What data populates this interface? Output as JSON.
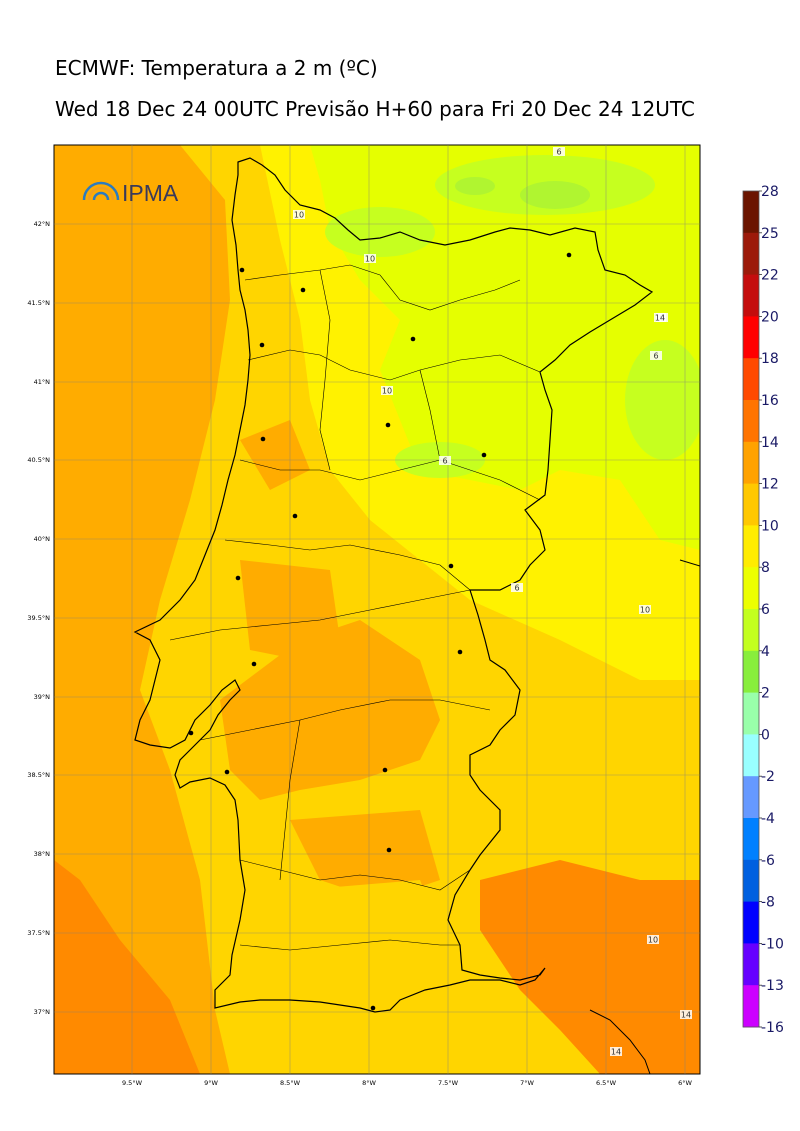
{
  "title": {
    "line1": "ECMWF: Temperatura a 2 m (ºC)",
    "line2": "Wed 18 Dec 24 00UTC Previsão H+60 para Fri 20 Dec 24 12UTC"
  },
  "logo": {
    "text": "IPMA"
  },
  "axes": {
    "lon_ticks": [
      "9.5°W",
      "9°W",
      "8.5°W",
      "8°W",
      "7.5°W",
      "7°W",
      "6.5°W",
      "6°W"
    ],
    "lat_ticks": [
      "42°N",
      "41.5°N",
      "41°N",
      "40.5°N",
      "40°N",
      "39.5°N",
      "39°N",
      "38.5°N",
      "38°N",
      "37.5°N",
      "37°N"
    ]
  },
  "colorbar": {
    "labels": [
      "28",
      "25",
      "22",
      "20",
      "18",
      "16",
      "14",
      "12",
      "10",
      "8",
      "6",
      "4",
      "2",
      "0",
      "-2",
      "-4",
      "-6",
      "-8",
      "-10",
      "-13",
      "-16"
    ],
    "colors": [
      "#6b1500",
      "#9c1a0a",
      "#c40d0d",
      "#ff0000",
      "#ff4a00",
      "#ff7400",
      "#ffa200",
      "#ffc800",
      "#ffec00",
      "#ecff00",
      "#c3ff1e",
      "#88ee3c",
      "#99ffaa",
      "#99ffff",
      "#6699ff",
      "#0080ff",
      "#0060e0",
      "#0000ff",
      "#6600ff",
      "#cc00ff"
    ]
  },
  "contour_labels": [
    "6",
    "10",
    "10",
    "6",
    "10",
    "6",
    "6",
    "6",
    "10",
    "10",
    "14",
    "14",
    "14"
  ]
}
